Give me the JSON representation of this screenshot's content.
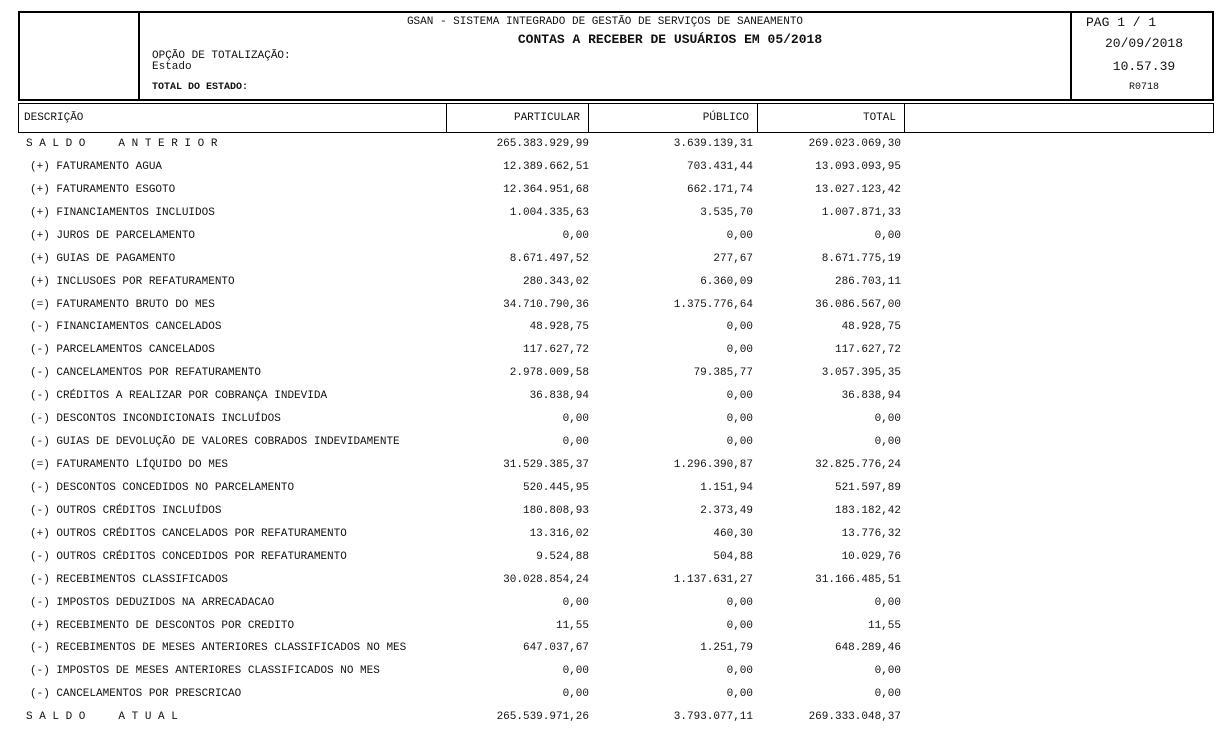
{
  "header": {
    "system": "GSAN - SISTEMA INTEGRADO DE GESTÃO DE SERVIÇOS DE SANEAMENTO",
    "title": "CONTAS A RECEBER DE USUÁRIOS EM 05/2018",
    "option_label": "OPÇÃO DE TOTALIZAÇÃO:",
    "option_value": "Estado",
    "total_label": "TOTAL DO ESTADO:",
    "page": "PAG 1 / 1",
    "date": "20/09/2018",
    "time": "10.57.39",
    "report_code": "R0718"
  },
  "table": {
    "columns": [
      "DESCRIÇÃO",
      "PARTICULAR",
      "PÚBLICO",
      "TOTAL"
    ],
    "rows": [
      [
        "S A L D O     A N T E R I O R",
        "265.383.929,99",
        "3.639.139,31",
        "269.023.069,30"
      ],
      [
        "(+) FATURAMENTO AGUA",
        "12.389.662,51",
        "703.431,44",
        "13.093.093,95"
      ],
      [
        "(+) FATURAMENTO ESGOTO",
        "12.364.951,68",
        "662.171,74",
        "13.027.123,42"
      ],
      [
        "(+) FINANCIAMENTOS INCLUIDOS",
        "1.004.335,63",
        "3.535,70",
        "1.007.871,33"
      ],
      [
        "(+) JUROS DE PARCELAMENTO",
        "0,00",
        "0,00",
        "0,00"
      ],
      [
        "(+) GUIAS DE PAGAMENTO",
        "8.671.497,52",
        "277,67",
        "8.671.775,19"
      ],
      [
        "(+) INCLUSOES POR REFATURAMENTO",
        "280.343,02",
        "6.360,09",
        "286.703,11"
      ],
      [
        "(=) FATURAMENTO BRUTO DO MES",
        "34.710.790,36",
        "1.375.776,64",
        "36.086.567,00"
      ],
      [
        "(-) FINANCIAMENTOS CANCELADOS",
        "48.928,75",
        "0,00",
        "48.928,75"
      ],
      [
        "(-) PARCELAMENTOS CANCELADOS",
        "117.627,72",
        "0,00",
        "117.627,72"
      ],
      [
        "(-) CANCELAMENTOS POR REFATURAMENTO",
        "2.978.009,58",
        "79.385,77",
        "3.057.395,35"
      ],
      [
        "(-) CRÉDITOS A REALIZAR POR COBRANÇA INDEVIDA",
        "36.838,94",
        "0,00",
        "36.838,94"
      ],
      [
        "(-) DESCONTOS INCONDICIONAIS INCLUÍDOS",
        "0,00",
        "0,00",
        "0,00"
      ],
      [
        "(-) GUIAS DE DEVOLUÇÃO DE VALORES COBRADOS INDEVIDAMENTE",
        "0,00",
        "0,00",
        "0,00"
      ],
      [
        "(=) FATURAMENTO LÍQUIDO DO MES",
        "31.529.385,37",
        "1.296.390,87",
        "32.825.776,24"
      ],
      [
        "(-) DESCONTOS CONCEDIDOS NO PARCELAMENTO",
        "520.445,95",
        "1.151,94",
        "521.597,89"
      ],
      [
        "(-) OUTROS CRÉDITOS INCLUÍDOS",
        "180.808,93",
        "2.373,49",
        "183.182,42"
      ],
      [
        "(+) OUTROS CRÉDITOS CANCELADOS POR REFATURAMENTO",
        "13.316,02",
        "460,30",
        "13.776,32"
      ],
      [
        "(-) OUTROS CRÉDITOS CONCEDIDOS POR REFATURAMENTO",
        "9.524,88",
        "504,88",
        "10.029,76"
      ],
      [
        "(-) RECEBIMENTOS CLASSIFICADOS",
        "30.028.854,24",
        "1.137.631,27",
        "31.166.485,51"
      ],
      [
        "(-) IMPOSTOS DEDUZIDOS NA ARRECADACAO",
        "0,00",
        "0,00",
        "0,00"
      ],
      [
        "(+) RECEBIMENTO DE DESCONTOS POR CREDITO",
        "11,55",
        "0,00",
        "11,55"
      ],
      [
        "(-) RECEBIMENTOS DE MESES ANTERIORES CLASSIFICADOS NO MES",
        "647.037,67",
        "1.251,79",
        "648.289,46"
      ],
      [
        "(-) IMPOSTOS DE MESES ANTERIORES CLASSIFICADOS NO MES",
        "0,00",
        "0,00",
        "0,00"
      ],
      [
        "(-) CANCELAMENTOS POR PRESCRICAO",
        "0,00",
        "0,00",
        "0,00"
      ],
      [
        "S A L D O     A T U A L",
        "265.539.971,26",
        "3.793.077,11",
        "269.333.048,37"
      ]
    ]
  }
}
